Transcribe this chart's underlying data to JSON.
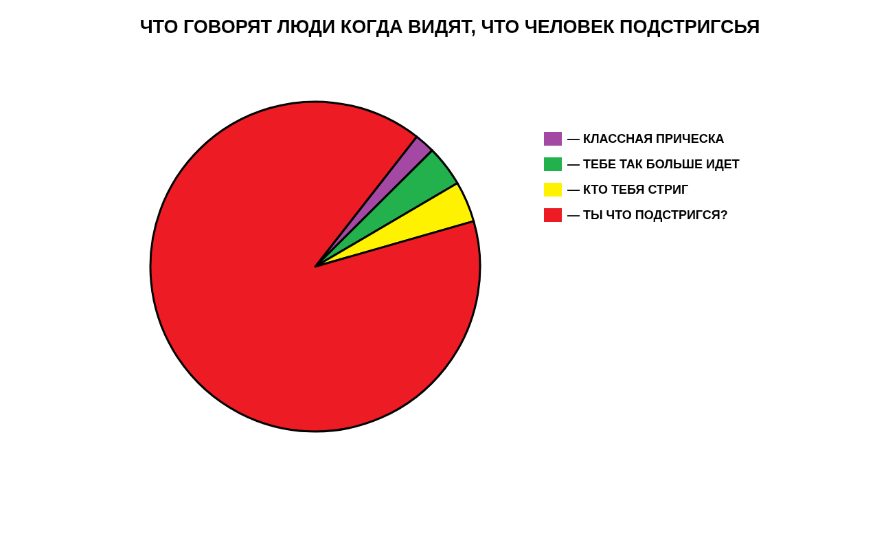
{
  "chart_data": {
    "type": "pie",
    "title": "ЧТО ГОВОРЯТ ЛЮДИ КОГДА ВИДЯТ, ЧТО ЧЕЛОВЕК ПОДСТРИГСЬЯ",
    "categories": [
      "— КЛАССНАЯ ПРИЧЕСКА",
      "— ТЕБЕ ТАК БОЛЬШЕ ИДЕТ",
      "— КТО ТЕБЯ СТРИГ",
      "— ТЫ ЧТО ПОДСТРИГСЯ?"
    ],
    "values": [
      2,
      4,
      4,
      90
    ],
    "colors": [
      "#a349a4",
      "#22b14c",
      "#fff200",
      "#ed1c24"
    ],
    "legend": "right"
  }
}
